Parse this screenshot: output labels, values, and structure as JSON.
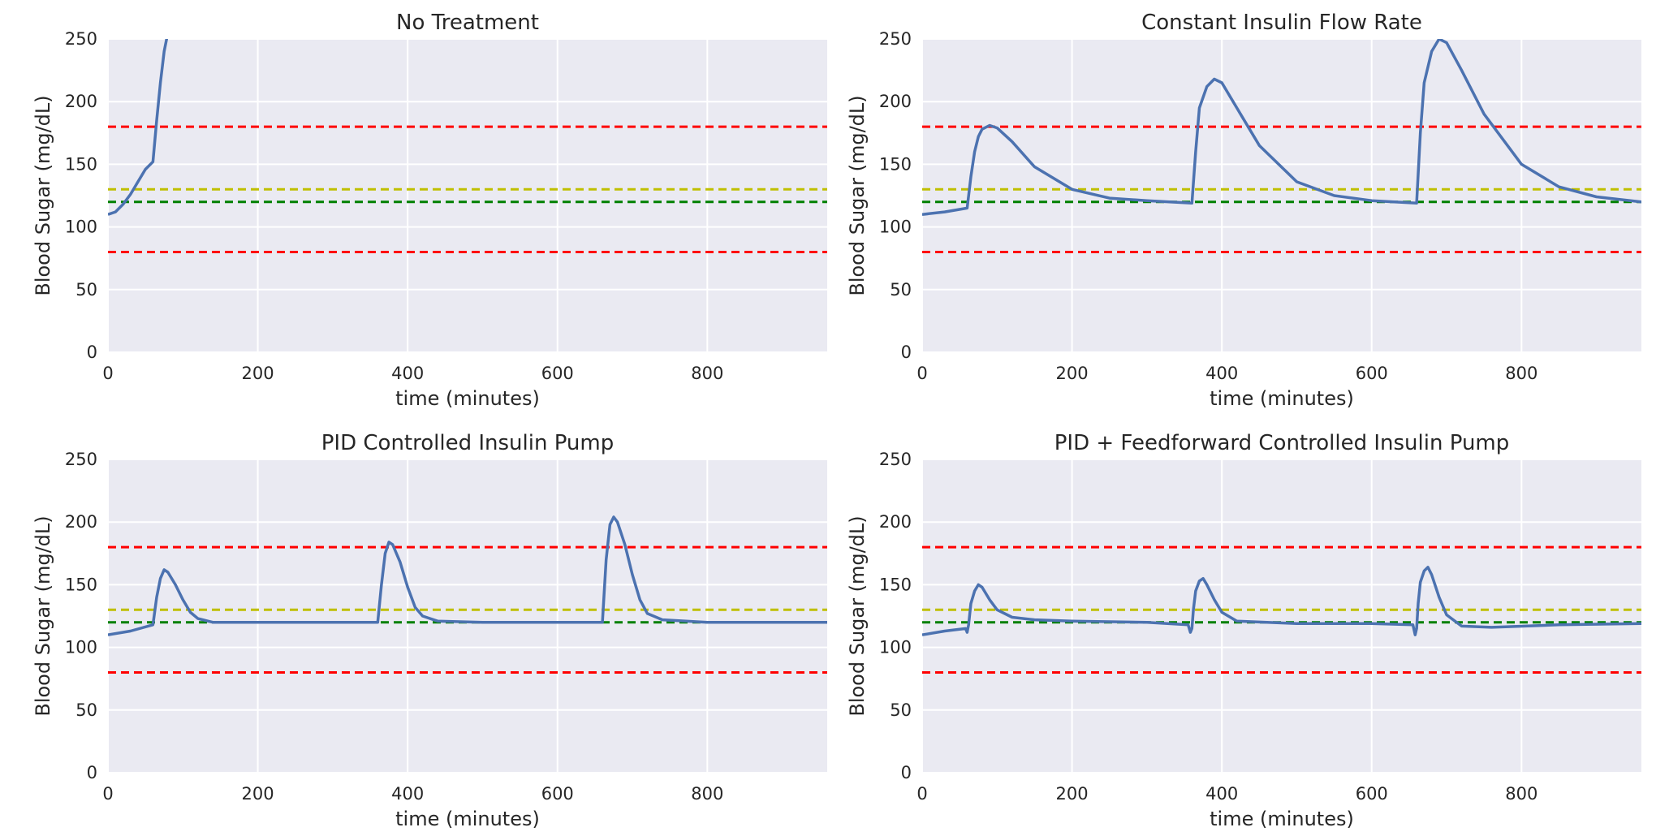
{
  "colors": {
    "axes_bg": "#eaeaf2",
    "grid": "#ffffff",
    "curve": "#4c72b0",
    "red_limit": "#ff0000",
    "yellow_line": "#bfbf00",
    "green_line": "#008000",
    "text": "#262626"
  },
  "chart_data": [
    {
      "type": "line",
      "title": "No Treatment",
      "xlabel": "time (minutes)",
      "ylabel": "Blood Sugar (mg/dL)",
      "xlim": [
        0,
        960
      ],
      "ylim": [
        0,
        250
      ],
      "xticks": [
        "0",
        "200",
        "400",
        "600",
        "800"
      ],
      "yticks": [
        "0",
        "50",
        "100",
        "150",
        "200",
        "250"
      ],
      "grid": true,
      "hlines": [
        {
          "y": 180,
          "color": "red",
          "style": "dashed"
        },
        {
          "y": 130,
          "color": "yellow",
          "style": "dashed"
        },
        {
          "y": 120,
          "color": "green",
          "style": "dashed"
        },
        {
          "y": 80,
          "color": "red",
          "style": "dashed"
        }
      ],
      "series": [
        {
          "x": [
            0,
            10,
            20,
            30,
            40,
            50,
            60,
            65,
            70,
            75,
            80
          ],
          "y": [
            110,
            112,
            118,
            126,
            136,
            146,
            152,
            185,
            215,
            240,
            255
          ]
        }
      ]
    },
    {
      "type": "line",
      "title": "Constant Insulin Flow Rate",
      "xlabel": "time (minutes)",
      "ylabel": "Blood Sugar (mg/dL)",
      "xlim": [
        0,
        960
      ],
      "ylim": [
        0,
        250
      ],
      "xticks": [
        "0",
        "200",
        "400",
        "600",
        "800"
      ],
      "yticks": [
        "0",
        "50",
        "100",
        "150",
        "200",
        "250"
      ],
      "grid": true,
      "hlines": [
        {
          "y": 180,
          "color": "red",
          "style": "dashed"
        },
        {
          "y": 130,
          "color": "yellow",
          "style": "dashed"
        },
        {
          "y": 120,
          "color": "green",
          "style": "dashed"
        },
        {
          "y": 80,
          "color": "red",
          "style": "dashed"
        }
      ],
      "series": [
        {
          "x": [
            0,
            30,
            60,
            65,
            70,
            75,
            80,
            90,
            100,
            120,
            150,
            200,
            250,
            300,
            360,
            365,
            370,
            380,
            390,
            400,
            420,
            450,
            500,
            550,
            600,
            660,
            665,
            670,
            680,
            690,
            700,
            720,
            750,
            800,
            850,
            900,
            960
          ],
          "y": [
            110,
            112,
            115,
            140,
            160,
            172,
            178,
            181,
            179,
            168,
            148,
            130,
            123,
            121,
            119,
            160,
            195,
            212,
            218,
            215,
            195,
            165,
            136,
            125,
            121,
            119,
            175,
            215,
            240,
            250,
            247,
            225,
            190,
            150,
            132,
            124,
            120
          ]
        }
      ]
    },
    {
      "type": "line",
      "title": "PID Controlled Insulin Pump",
      "xlabel": "time (minutes)",
      "ylabel": "Blood Sugar (mg/dL)",
      "xlim": [
        0,
        960
      ],
      "ylim": [
        0,
        250
      ],
      "xticks": [
        "0",
        "200",
        "400",
        "600",
        "800"
      ],
      "yticks": [
        "0",
        "50",
        "100",
        "150",
        "200",
        "250"
      ],
      "grid": true,
      "hlines": [
        {
          "y": 180,
          "color": "red",
          "style": "dashed"
        },
        {
          "y": 130,
          "color": "yellow",
          "style": "dashed"
        },
        {
          "y": 120,
          "color": "green",
          "style": "dashed"
        },
        {
          "y": 80,
          "color": "red",
          "style": "dashed"
        }
      ],
      "series": [
        {
          "x": [
            0,
            30,
            60,
            65,
            70,
            75,
            80,
            90,
            100,
            110,
            120,
            140,
            200,
            300,
            360,
            365,
            370,
            375,
            380,
            390,
            400,
            410,
            420,
            440,
            500,
            600,
            660,
            665,
            670,
            675,
            680,
            690,
            700,
            710,
            720,
            740,
            800,
            900,
            960
          ],
          "y": [
            110,
            113,
            118,
            140,
            155,
            162,
            160,
            150,
            138,
            128,
            123,
            120,
            120,
            120,
            120,
            150,
            175,
            184,
            182,
            168,
            148,
            132,
            125,
            121,
            120,
            120,
            120,
            170,
            198,
            204,
            200,
            182,
            158,
            138,
            127,
            122,
            120,
            120,
            120
          ]
        }
      ]
    },
    {
      "type": "line",
      "title": "PID + Feedforward Controlled Insulin Pump",
      "xlabel": "time (minutes)",
      "ylabel": "Blood Sugar (mg/dL)",
      "xlim": [
        0,
        960
      ],
      "ylim": [
        0,
        250
      ],
      "xticks": [
        "0",
        "200",
        "400",
        "600",
        "800"
      ],
      "yticks": [
        "0",
        "50",
        "100",
        "150",
        "200",
        "250"
      ],
      "grid": true,
      "hlines": [
        {
          "y": 180,
          "color": "red",
          "style": "dashed"
        },
        {
          "y": 130,
          "color": "yellow",
          "style": "dashed"
        },
        {
          "y": 120,
          "color": "green",
          "style": "dashed"
        },
        {
          "y": 80,
          "color": "red",
          "style": "dashed"
        }
      ],
      "series": [
        {
          "x": [
            0,
            30,
            58,
            60,
            62,
            65,
            70,
            75,
            80,
            90,
            100,
            120,
            150,
            200,
            300,
            355,
            358,
            360,
            362,
            365,
            370,
            375,
            380,
            390,
            400,
            420,
            500,
            600,
            655,
            658,
            660,
            662,
            665,
            670,
            675,
            680,
            690,
            700,
            720,
            760,
            850,
            960
          ],
          "y": [
            110,
            113,
            115,
            112,
            118,
            135,
            145,
            150,
            148,
            138,
            130,
            124,
            122,
            121,
            120,
            118,
            112,
            115,
            130,
            145,
            153,
            155,
            150,
            138,
            128,
            121,
            119,
            119,
            118,
            110,
            115,
            135,
            152,
            161,
            164,
            158,
            140,
            126,
            117,
            116,
            118,
            119
          ]
        }
      ]
    }
  ]
}
